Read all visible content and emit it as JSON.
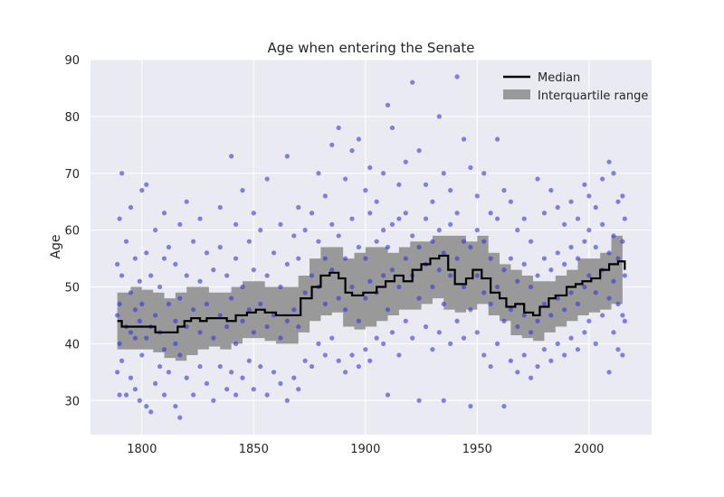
{
  "chart_data": {
    "type": "scatter",
    "title": "Age when entering the Senate",
    "xlabel": "",
    "ylabel": "Age",
    "xlim": [
      1777,
      2028
    ],
    "ylim": [
      24,
      90
    ],
    "x_ticks": [
      1800,
      1850,
      1900,
      1950,
      2000
    ],
    "y_ticks": [
      30,
      40,
      50,
      60,
      70,
      80,
      90
    ],
    "grid": true,
    "legend_position": "top-right",
    "colors": {
      "background": "#eaeaf2",
      "grid": "#ffffff",
      "points": "#3333dd",
      "median": "#000000",
      "iqr": "#999999"
    },
    "series": [
      {
        "name": "Median",
        "kind": "step-line",
        "points": [
          [
            1789,
            44
          ],
          [
            1791,
            43
          ],
          [
            1800,
            43
          ],
          [
            1806,
            42
          ],
          [
            1816,
            43
          ],
          [
            1819,
            44
          ],
          [
            1822,
            44.5
          ],
          [
            1826,
            44
          ],
          [
            1829,
            44.5
          ],
          [
            1838,
            44
          ],
          [
            1842,
            45
          ],
          [
            1847,
            45.5
          ],
          [
            1851,
            46
          ],
          [
            1855,
            45.5
          ],
          [
            1860,
            45
          ],
          [
            1866,
            45
          ],
          [
            1871,
            48
          ],
          [
            1876,
            50
          ],
          [
            1880,
            52
          ],
          [
            1884,
            52.5
          ],
          [
            1888,
            51.5
          ],
          [
            1891,
            49
          ],
          [
            1894,
            48.5
          ],
          [
            1899,
            49
          ],
          [
            1905,
            50
          ],
          [
            1909,
            51
          ],
          [
            1913,
            52
          ],
          [
            1917,
            51
          ],
          [
            1921,
            53
          ],
          [
            1925,
            54
          ],
          [
            1929,
            55
          ],
          [
            1933,
            55.5
          ],
          [
            1937,
            53
          ],
          [
            1940,
            50.5
          ],
          [
            1945,
            51.5
          ],
          [
            1948,
            53
          ],
          [
            1952,
            51.5
          ],
          [
            1956,
            49
          ],
          [
            1960,
            48
          ],
          [
            1963,
            46.5
          ],
          [
            1967,
            47
          ],
          [
            1971,
            45.5
          ],
          [
            1975,
            45
          ],
          [
            1978,
            46.5
          ],
          [
            1982,
            48
          ],
          [
            1985,
            48.5
          ],
          [
            1990,
            50
          ],
          [
            1994,
            50.5
          ],
          [
            1997,
            51
          ],
          [
            2001,
            51.5
          ],
          [
            2005,
            53
          ],
          [
            2009,
            54
          ],
          [
            2013,
            54.5
          ],
          [
            2016,
            53
          ]
        ]
      },
      {
        "name": "Interquartile range",
        "kind": "band",
        "x": [
          1789,
          1795,
          1800,
          1805,
          1810,
          1815,
          1820,
          1825,
          1830,
          1835,
          1840,
          1845,
          1850,
          1855,
          1860,
          1865,
          1870,
          1875,
          1880,
          1885,
          1890,
          1895,
          1900,
          1905,
          1910,
          1915,
          1920,
          1925,
          1930,
          1935,
          1940,
          1945,
          1950,
          1955,
          1960,
          1965,
          1970,
          1975,
          1980,
          1985,
          1990,
          1995,
          2000,
          2005,
          2010,
          2015
        ],
        "low": [
          39,
          39,
          39,
          38.5,
          37.5,
          37,
          38,
          39,
          39.5,
          39,
          40,
          41,
          41,
          40.5,
          40,
          40,
          42,
          44,
          45,
          45.5,
          43,
          42.5,
          43,
          44,
          45,
          46,
          46,
          47,
          48,
          46,
          45.5,
          46,
          47,
          45,
          44,
          41.5,
          41,
          40.5,
          42,
          43,
          44,
          45,
          45.5,
          46,
          47,
          46
        ],
        "high": [
          49,
          50,
          49.5,
          49,
          48,
          49,
          50,
          50,
          49,
          49,
          50,
          51,
          51,
          50,
          50,
          50,
          52,
          55,
          57,
          57,
          55,
          56,
          57,
          57,
          56,
          57,
          58,
          58,
          59,
          59,
          59,
          58,
          59,
          56,
          54,
          53,
          52,
          51,
          51,
          52,
          53,
          55,
          55,
          56,
          59,
          60
        ]
      }
    ],
    "scatter_points": [
      [
        1789,
        35
      ],
      [
        1789,
        45
      ],
      [
        1789,
        54
      ],
      [
        1790,
        31
      ],
      [
        1790,
        40
      ],
      [
        1790,
        47
      ],
      [
        1790,
        62
      ],
      [
        1791,
        37
      ],
      [
        1791,
        52
      ],
      [
        1791,
        70
      ],
      [
        1793,
        31
      ],
      [
        1793,
        43
      ],
      [
        1793,
        58
      ],
      [
        1795,
        34
      ],
      [
        1795,
        42
      ],
      [
        1795,
        49
      ],
      [
        1795,
        64
      ],
      [
        1797,
        32
      ],
      [
        1797,
        41
      ],
      [
        1797,
        46
      ],
      [
        1797,
        55
      ],
      [
        1799,
        30
      ],
      [
        1799,
        44
      ],
      [
        1799,
        51
      ],
      [
        1800,
        38
      ],
      [
        1800,
        47
      ],
      [
        1800,
        67
      ],
      [
        1802,
        29
      ],
      [
        1802,
        41
      ],
      [
        1802,
        56
      ],
      [
        1802,
        68
      ],
      [
        1804,
        28
      ],
      [
        1804,
        43
      ],
      [
        1804,
        52
      ],
      [
        1806,
        33
      ],
      [
        1806,
        45
      ],
      [
        1806,
        60
      ],
      [
        1808,
        36
      ],
      [
        1808,
        42
      ],
      [
        1808,
        50
      ],
      [
        1810,
        31
      ],
      [
        1810,
        39
      ],
      [
        1810,
        55
      ],
      [
        1810,
        63
      ],
      [
        1812,
        35
      ],
      [
        1812,
        47
      ],
      [
        1812,
        57
      ],
      [
        1815,
        29
      ],
      [
        1815,
        40
      ],
      [
        1815,
        44
      ],
      [
        1815,
        54
      ],
      [
        1817,
        27
      ],
      [
        1817,
        38
      ],
      [
        1817,
        48
      ],
      [
        1817,
        61
      ],
      [
        1820,
        34
      ],
      [
        1820,
        43
      ],
      [
        1820,
        52
      ],
      [
        1820,
        65
      ],
      [
        1823,
        31
      ],
      [
        1823,
        46
      ],
      [
        1823,
        58
      ],
      [
        1826,
        36
      ],
      [
        1826,
        42
      ],
      [
        1826,
        51
      ],
      [
        1826,
        62
      ],
      [
        1829,
        33
      ],
      [
        1829,
        47
      ],
      [
        1829,
        56
      ],
      [
        1832,
        30
      ],
      [
        1832,
        41
      ],
      [
        1832,
        53
      ],
      [
        1835,
        36
      ],
      [
        1835,
        45
      ],
      [
        1835,
        57
      ],
      [
        1835,
        64
      ],
      [
        1838,
        32
      ],
      [
        1838,
        43
      ],
      [
        1838,
        52
      ],
      [
        1840,
        35
      ],
      [
        1840,
        48
      ],
      [
        1840,
        73
      ],
      [
        1842,
        31
      ],
      [
        1842,
        40
      ],
      [
        1842,
        55
      ],
      [
        1842,
        61
      ],
      [
        1845,
        34
      ],
      [
        1845,
        44
      ],
      [
        1845,
        50
      ],
      [
        1845,
        67
      ],
      [
        1848,
        37
      ],
      [
        1848,
        46
      ],
      [
        1848,
        58
      ],
      [
        1850,
        32
      ],
      [
        1850,
        42
      ],
      [
        1850,
        53
      ],
      [
        1850,
        63
      ],
      [
        1853,
        36
      ],
      [
        1853,
        47
      ],
      [
        1853,
        60
      ],
      [
        1856,
        31
      ],
      [
        1856,
        43
      ],
      [
        1856,
        52
      ],
      [
        1856,
        69
      ],
      [
        1859,
        35
      ],
      [
        1859,
        45
      ],
      [
        1859,
        56
      ],
      [
        1862,
        33
      ],
      [
        1862,
        41
      ],
      [
        1862,
        50
      ],
      [
        1862,
        61
      ],
      [
        1865,
        30
      ],
      [
        1865,
        44
      ],
      [
        1865,
        54
      ],
      [
        1865,
        73
      ],
      [
        1868,
        34
      ],
      [
        1868,
        46
      ],
      [
        1868,
        59
      ],
      [
        1870,
        32
      ],
      [
        1870,
        43
      ],
      [
        1870,
        55
      ],
      [
        1870,
        64
      ],
      [
        1873,
        37
      ],
      [
        1873,
        49
      ],
      [
        1873,
        60
      ],
      [
        1876,
        36
      ],
      [
        1876,
        52
      ],
      [
        1876,
        63
      ],
      [
        1879,
        40
      ],
      [
        1879,
        50
      ],
      [
        1879,
        58
      ],
      [
        1879,
        70
      ],
      [
        1882,
        38
      ],
      [
        1882,
        47
      ],
      [
        1882,
        55
      ],
      [
        1882,
        66
      ],
      [
        1885,
        41
      ],
      [
        1885,
        53
      ],
      [
        1885,
        61
      ],
      [
        1885,
        75
      ],
      [
        1888,
        37
      ],
      [
        1888,
        48
      ],
      [
        1888,
        59
      ],
      [
        1888,
        78
      ],
      [
        1891,
        35
      ],
      [
        1891,
        46
      ],
      [
        1891,
        55
      ],
      [
        1891,
        69
      ],
      [
        1894,
        38
      ],
      [
        1894,
        50
      ],
      [
        1894,
        62
      ],
      [
        1894,
        74
      ],
      [
        1897,
        36
      ],
      [
        1897,
        44
      ],
      [
        1897,
        57
      ],
      [
        1897,
        76
      ],
      [
        1900,
        39
      ],
      [
        1900,
        48
      ],
      [
        1900,
        55
      ],
      [
        1900,
        67
      ],
      [
        1902,
        37
      ],
      [
        1902,
        51
      ],
      [
        1902,
        63
      ],
      [
        1902,
        71
      ],
      [
        1905,
        41
      ],
      [
        1905,
        49
      ],
      [
        1905,
        58
      ],
      [
        1905,
        65
      ],
      [
        1908,
        40
      ],
      [
        1908,
        52
      ],
      [
        1908,
        60
      ],
      [
        1908,
        70
      ],
      [
        1910,
        31
      ],
      [
        1910,
        46
      ],
      [
        1910,
        57
      ],
      [
        1910,
        82
      ],
      [
        1912,
        42
      ],
      [
        1912,
        53
      ],
      [
        1912,
        61
      ],
      [
        1912,
        78
      ],
      [
        1915,
        38
      ],
      [
        1915,
        50
      ],
      [
        1915,
        62
      ],
      [
        1915,
        68
      ],
      [
        1918,
        44
      ],
      [
        1918,
        55
      ],
      [
        1918,
        63
      ],
      [
        1918,
        72
      ],
      [
        1921,
        41
      ],
      [
        1921,
        52
      ],
      [
        1921,
        59
      ],
      [
        1921,
        86
      ],
      [
        1924,
        30
      ],
      [
        1924,
        48
      ],
      [
        1924,
        57
      ],
      [
        1924,
        74
      ],
      [
        1927,
        43
      ],
      [
        1927,
        54
      ],
      [
        1927,
        62
      ],
      [
        1927,
        68
      ],
      [
        1930,
        39
      ],
      [
        1930,
        50
      ],
      [
        1930,
        58
      ],
      [
        1930,
        65
      ],
      [
        1933,
        42
      ],
      [
        1933,
        53
      ],
      [
        1933,
        60
      ],
      [
        1933,
        80
      ],
      [
        1935,
        30
      ],
      [
        1935,
        47
      ],
      [
        1935,
        56
      ],
      [
        1935,
        70
      ],
      [
        1938,
        40
      ],
      [
        1938,
        52
      ],
      [
        1938,
        61
      ],
      [
        1938,
        67
      ],
      [
        1941,
        44
      ],
      [
        1941,
        55
      ],
      [
        1941,
        63
      ],
      [
        1941,
        87
      ],
      [
        1944,
        41
      ],
      [
        1944,
        50
      ],
      [
        1944,
        58
      ],
      [
        1944,
        76
      ],
      [
        1947,
        29
      ],
      [
        1947,
        46
      ],
      [
        1947,
        57
      ],
      [
        1947,
        71
      ],
      [
        1950,
        42
      ],
      [
        1950,
        52
      ],
      [
        1950,
        60
      ],
      [
        1950,
        66
      ],
      [
        1953,
        38
      ],
      [
        1953,
        49
      ],
      [
        1953,
        58
      ],
      [
        1953,
        70
      ],
      [
        1956,
        36
      ],
      [
        1956,
        47
      ],
      [
        1956,
        55
      ],
      [
        1956,
        63
      ],
      [
        1959,
        40
      ],
      [
        1959,
        50
      ],
      [
        1959,
        62
      ],
      [
        1959,
        76
      ],
      [
        1962,
        29
      ],
      [
        1962,
        44
      ],
      [
        1962,
        53
      ],
      [
        1962,
        67
      ],
      [
        1965,
        37
      ],
      [
        1965,
        46
      ],
      [
        1965,
        55
      ],
      [
        1965,
        65
      ],
      [
        1968,
        35
      ],
      [
        1968,
        43
      ],
      [
        1968,
        51
      ],
      [
        1968,
        60
      ],
      [
        1971,
        38
      ],
      [
        1971,
        45
      ],
      [
        1971,
        54
      ],
      [
        1971,
        62
      ],
      [
        1974,
        34
      ],
      [
        1974,
        42
      ],
      [
        1974,
        50
      ],
      [
        1974,
        58
      ],
      [
        1977,
        36
      ],
      [
        1977,
        44
      ],
      [
        1977,
        52
      ],
      [
        1977,
        69
      ],
      [
        1980,
        39
      ],
      [
        1980,
        47
      ],
      [
        1980,
        55
      ],
      [
        1980,
        63
      ],
      [
        1983,
        37
      ],
      [
        1983,
        45
      ],
      [
        1983,
        53
      ],
      [
        1983,
        67
      ],
      [
        1986,
        40
      ],
      [
        1986,
        48
      ],
      [
        1986,
        56
      ],
      [
        1986,
        64
      ],
      [
        1989,
        38
      ],
      [
        1989,
        46
      ],
      [
        1989,
        54
      ],
      [
        1989,
        61
      ],
      [
        1992,
        41
      ],
      [
        1992,
        49
      ],
      [
        1992,
        57
      ],
      [
        1992,
        65
      ],
      [
        1995,
        39
      ],
      [
        1995,
        47
      ],
      [
        1995,
        55
      ],
      [
        1995,
        62
      ],
      [
        1998,
        42
      ],
      [
        1998,
        50
      ],
      [
        1998,
        58
      ],
      [
        1998,
        68
      ],
      [
        2000,
        44
      ],
      [
        2000,
        52
      ],
      [
        2000,
        60
      ],
      [
        2000,
        66
      ],
      [
        2003,
        40
      ],
      [
        2003,
        49
      ],
      [
        2003,
        57
      ],
      [
        2003,
        64
      ],
      [
        2006,
        45
      ],
      [
        2006,
        53
      ],
      [
        2006,
        61
      ],
      [
        2006,
        69
      ],
      [
        2009,
        35
      ],
      [
        2009,
        48
      ],
      [
        2009,
        56
      ],
      [
        2009,
        72
      ],
      [
        2011,
        42
      ],
      [
        2011,
        51
      ],
      [
        2011,
        59
      ],
      [
        2011,
        70
      ],
      [
        2013,
        39
      ],
      [
        2013,
        47
      ],
      [
        2013,
        55
      ],
      [
        2013,
        65
      ],
      [
        2015,
        38
      ],
      [
        2015,
        45
      ],
      [
        2015,
        58
      ],
      [
        2015,
        66
      ],
      [
        2016,
        44
      ],
      [
        2016,
        52
      ],
      [
        2016,
        62
      ]
    ]
  }
}
